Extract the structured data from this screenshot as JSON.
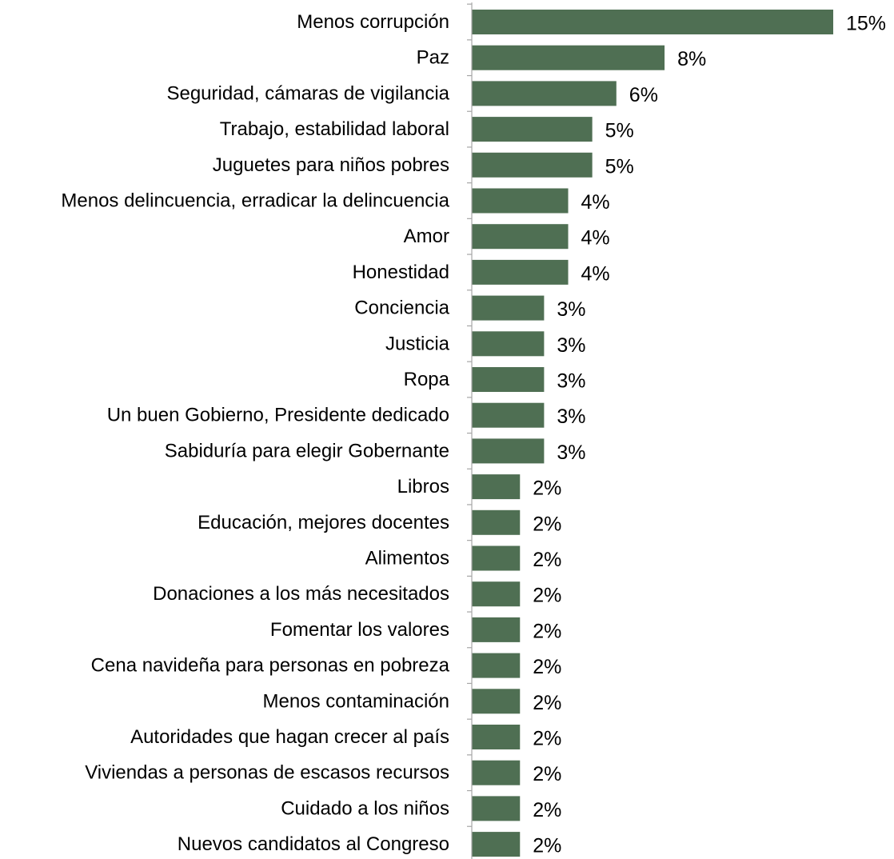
{
  "chart_data": {
    "type": "bar",
    "orientation": "horizontal",
    "categories": [
      "Menos corrupción",
      "Paz",
      "Seguridad, cámaras de vigilancia",
      "Trabajo, estabilidad laboral",
      "Juguetes para niños pobres",
      "Menos delincuencia, erradicar la delincuencia",
      "Amor",
      "Honestidad",
      "Conciencia",
      "Justicia",
      "Ropa",
      "Un buen Gobierno, Presidente dedicado",
      "Sabiduría para elegir Gobernante",
      "Libros",
      "Educación, mejores docentes",
      "Alimentos",
      "Donaciones a los más necesitados",
      "Fomentar los valores",
      "Cena navideña para personas en pobreza",
      "Menos contaminación",
      "Autoridades que hagan crecer al país",
      "Viviendas a personas de escasos recursos",
      "Cuidado a los niños",
      "Nuevos candidatos al Congreso"
    ],
    "values": [
      15,
      8,
      6,
      5,
      5,
      4,
      4,
      4,
      3,
      3,
      3,
      3,
      3,
      2,
      2,
      2,
      2,
      2,
      2,
      2,
      2,
      2,
      2,
      2
    ],
    "value_labels": [
      "15%",
      "8%",
      "6%",
      "5%",
      "5%",
      "4%",
      "4%",
      "4%",
      "3%",
      "3%",
      "3%",
      "3%",
      "3%",
      "2%",
      "2%",
      "2%",
      "2%",
      "2%",
      "2%",
      "2%",
      "2%",
      "2%",
      "2%",
      "2%"
    ],
    "xlim": [
      0,
      15
    ],
    "grid": false,
    "legend": "none",
    "bar_color": "#4f6f53",
    "axis_color": "#a6a6a6"
  }
}
